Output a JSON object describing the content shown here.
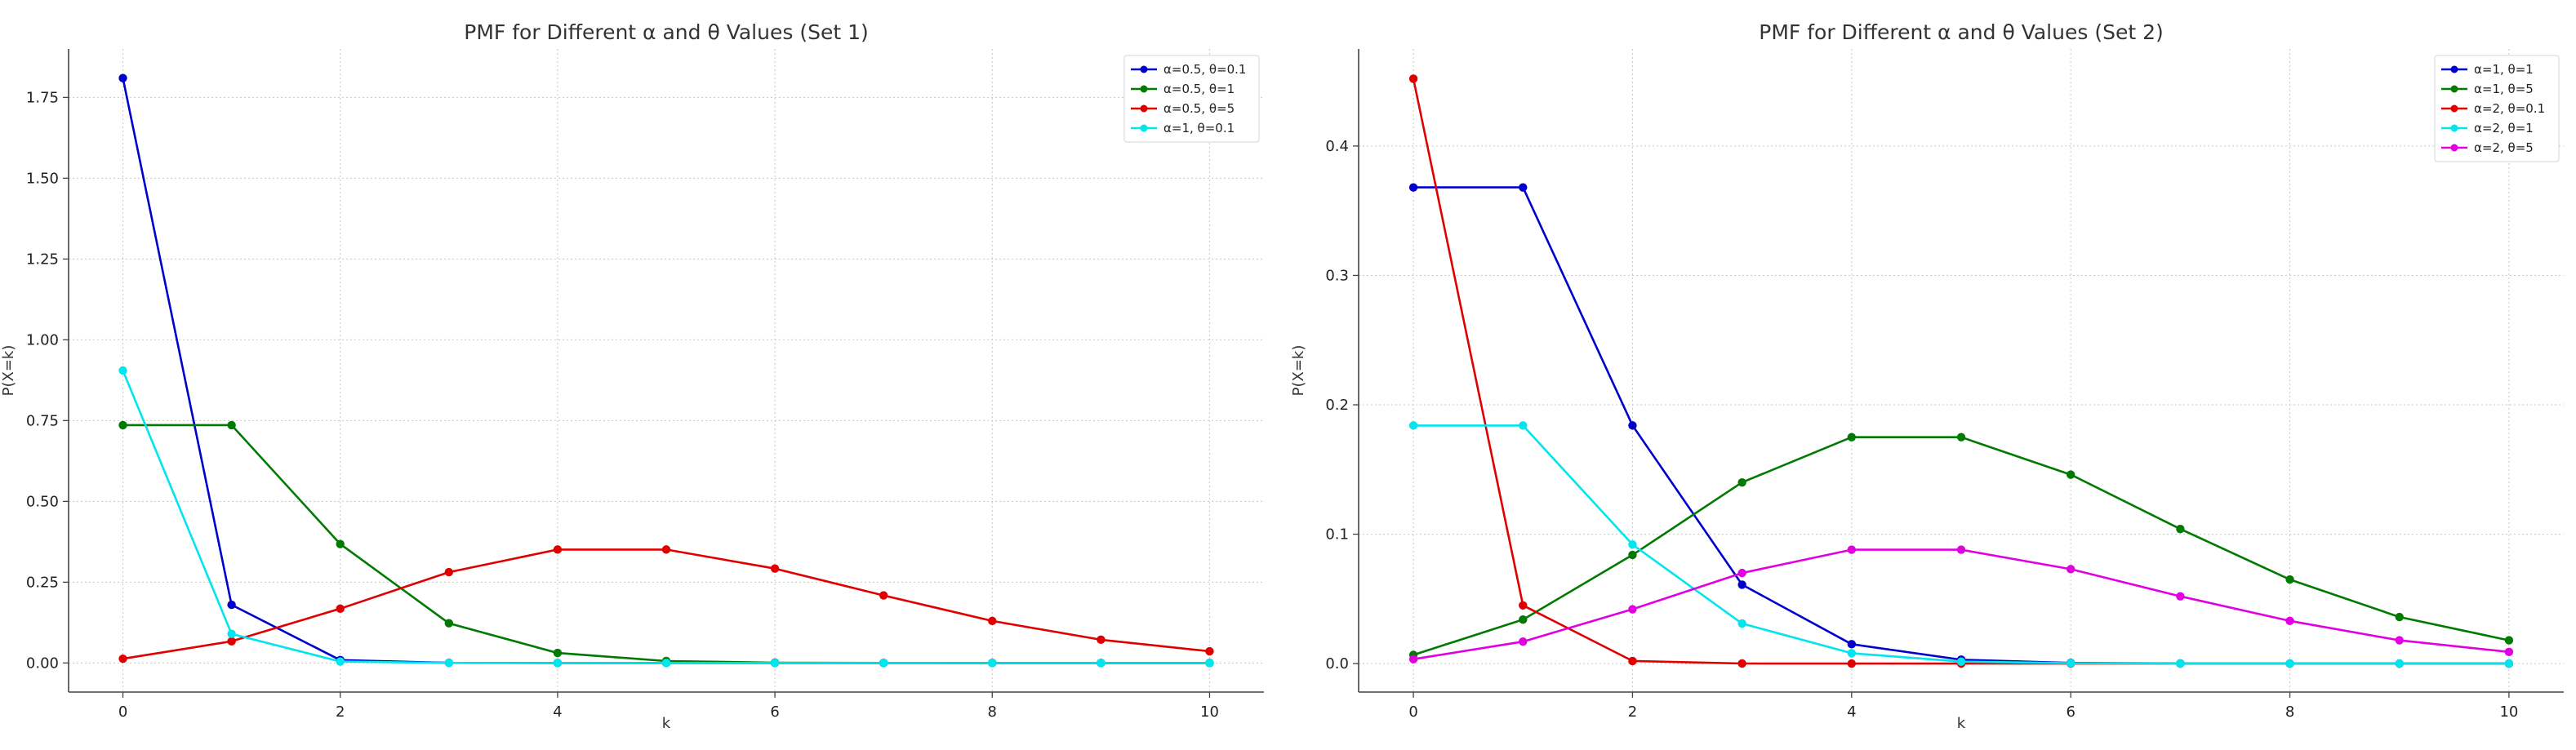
{
  "chart_data": [
    {
      "type": "line",
      "title": "PMF for Different α and θ Values (Set 1)",
      "xlabel": "k",
      "ylabel": "P(X=k)",
      "xlim": [
        -0.5,
        10.5
      ],
      "ylim": [
        -0.09,
        1.9
      ],
      "grid": true,
      "legend_position": "top-right",
      "x": [
        0,
        1,
        2,
        3,
        4,
        5,
        6,
        7,
        8,
        9,
        10
      ],
      "xticks": [
        0,
        2,
        4,
        6,
        8,
        10
      ],
      "xtick_labels": [
        "0",
        "2",
        "4",
        "6",
        "8",
        "10"
      ],
      "yticks": [
        0,
        0.25,
        0.5,
        0.75,
        1.0,
        1.25,
        1.5,
        1.75
      ],
      "ytick_labels": [
        "0.00",
        "0.25",
        "0.50",
        "0.75",
        "1.00",
        "1.25",
        "1.50",
        "1.75"
      ],
      "series": [
        {
          "name": "α=0.5, θ=0.1",
          "color": "#0000cc",
          "values": [
            1.81,
            0.18,
            0.009,
            0.0003,
            0.0,
            0.0,
            0.0,
            0.0,
            0.0,
            0.0,
            0.0
          ]
        },
        {
          "name": "α=0.5, θ=1",
          "color": "#007a00",
          "values": [
            0.736,
            0.736,
            0.368,
            0.123,
            0.031,
            0.006,
            0.001,
            0.0001,
            0.0,
            0.0,
            0.0
          ]
        },
        {
          "name": "α=0.5, θ=5",
          "color": "#e00000",
          "values": [
            0.013,
            0.067,
            0.168,
            0.281,
            0.351,
            0.351,
            0.292,
            0.209,
            0.13,
            0.072,
            0.036
          ]
        },
        {
          "name": "α=1, θ=0.1",
          "color": "#00e5ee",
          "values": [
            0.905,
            0.09,
            0.0045,
            0.0002,
            0.0,
            0.0,
            0.0,
            0.0,
            0.0,
            0.0,
            0.0
          ]
        }
      ]
    },
    {
      "type": "line",
      "title": "PMF for Different α and θ Values (Set 2)",
      "xlabel": "k",
      "ylabel": "P(X=k)",
      "xlim": [
        -0.5,
        10.5
      ],
      "ylim": [
        -0.022,
        0.475
      ],
      "grid": true,
      "legend_position": "top-right",
      "x": [
        0,
        1,
        2,
        3,
        4,
        5,
        6,
        7,
        8,
        9,
        10
      ],
      "xticks": [
        0,
        2,
        4,
        6,
        8,
        10
      ],
      "xtick_labels": [
        "0",
        "2",
        "4",
        "6",
        "8",
        "10"
      ],
      "yticks": [
        0,
        0.1,
        0.2,
        0.3,
        0.4
      ],
      "ytick_labels": [
        "0.0",
        "0.1",
        "0.2",
        "0.3",
        "0.4"
      ],
      "series": [
        {
          "name": "α=1, θ=1",
          "color": "#0000cc",
          "values": [
            0.368,
            0.368,
            0.184,
            0.061,
            0.015,
            0.003,
            0.0005,
            0.0001,
            0.0,
            0.0,
            0.0
          ]
        },
        {
          "name": "α=1, θ=5",
          "color": "#007a00",
          "values": [
            0.0067,
            0.034,
            0.084,
            0.14,
            0.175,
            0.175,
            0.146,
            0.104,
            0.065,
            0.036,
            0.018
          ]
        },
        {
          "name": "α=2, θ=0.1",
          "color": "#e00000",
          "values": [
            0.452,
            0.045,
            0.002,
            0.0001,
            0.0,
            0.0,
            0.0,
            0.0,
            0.0,
            0.0,
            0.0
          ]
        },
        {
          "name": "α=2, θ=1",
          "color": "#00e5ee",
          "values": [
            0.184,
            0.184,
            0.092,
            0.031,
            0.008,
            0.0015,
            0.0003,
            0.0,
            0.0,
            0.0,
            0.0
          ]
        },
        {
          "name": "α=2, θ=5",
          "color": "#e000e0",
          "values": [
            0.0034,
            0.017,
            0.042,
            0.07,
            0.088,
            0.088,
            0.073,
            0.052,
            0.033,
            0.018,
            0.009
          ]
        }
      ]
    }
  ]
}
